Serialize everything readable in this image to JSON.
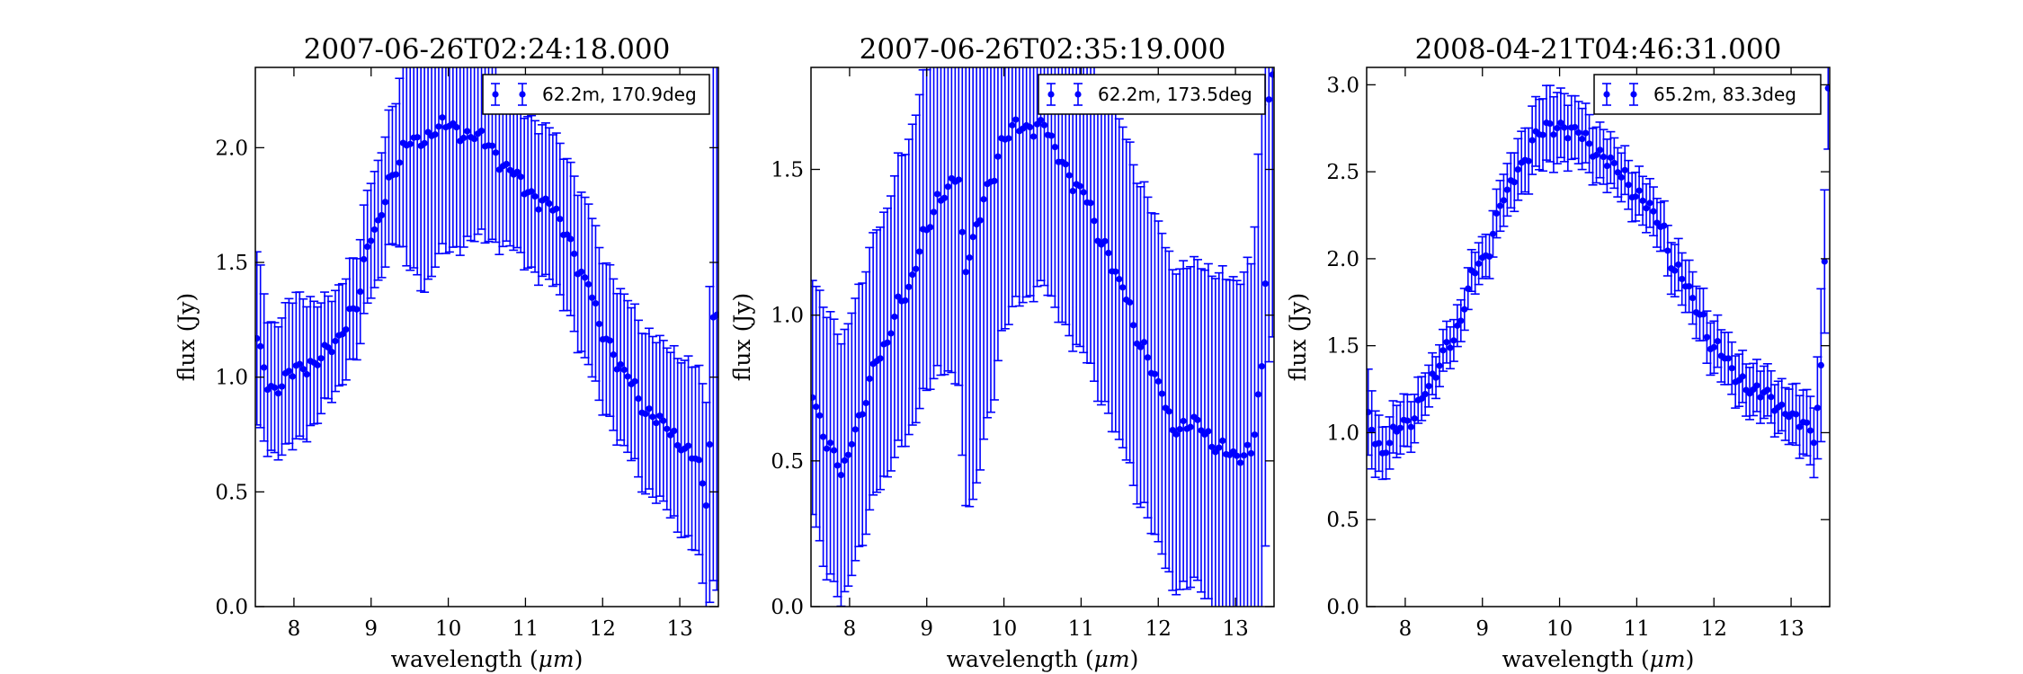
{
  "chart_data": [
    {
      "type": "scatter",
      "title": "2007-06-26T02:24:18.000",
      "xlabel": "wavelength (",
      "xlabel_unit": "μm",
      "xlabel_close": ")",
      "ylabel": "flux (Jy)",
      "xlim": [
        7.5,
        13.5
      ],
      "ylim": [
        0.0,
        2.35
      ],
      "xticks": [
        "8",
        "9",
        "10",
        "11",
        "12",
        "13"
      ],
      "yticks": [
        "0.0",
        "0.5",
        "1.0",
        "1.5",
        "2.0"
      ],
      "legend": "62.2m, 170.9deg",
      "legend_loc": "upper right",
      "color": "#0000ff",
      "error_bars": true,
      "anchors": [
        [
          7.5,
          1.15,
          0.38
        ],
        [
          7.7,
          0.95,
          0.28
        ],
        [
          8.0,
          1.02,
          0.32
        ],
        [
          8.5,
          1.12,
          0.22
        ],
        [
          8.8,
          1.32,
          0.22
        ],
        [
          9.0,
          1.6,
          0.25
        ],
        [
          9.3,
          1.9,
          0.3
        ],
        [
          9.5,
          2.02,
          0.55
        ],
        [
          9.7,
          2.05,
          0.65
        ],
        [
          9.9,
          2.08,
          0.55
        ],
        [
          10.0,
          2.1,
          0.55
        ],
        [
          10.3,
          2.05,
          0.45
        ],
        [
          10.5,
          2.02,
          0.42
        ],
        [
          10.8,
          1.9,
          0.33
        ],
        [
          11.0,
          1.82,
          0.33
        ],
        [
          11.3,
          1.75,
          0.33
        ],
        [
          11.5,
          1.65,
          0.33
        ],
        [
          11.8,
          1.4,
          0.35
        ],
        [
          12.0,
          1.2,
          0.33
        ],
        [
          12.3,
          1.0,
          0.33
        ],
        [
          12.6,
          0.85,
          0.35
        ],
        [
          12.8,
          0.78,
          0.35
        ],
        [
          13.0,
          0.72,
          0.38
        ],
        [
          13.2,
          0.65,
          0.4
        ],
        [
          13.35,
          0.45,
          0.45
        ],
        [
          13.45,
          1.3,
          1.2
        ]
      ]
    },
    {
      "type": "scatter",
      "title": "2007-06-26T02:35:19.000",
      "xlabel": "wavelength (",
      "xlabel_unit": "μm",
      "xlabel_close": ")",
      "ylabel": "flux (Jy)",
      "xlim": [
        7.5,
        13.5
      ],
      "ylim": [
        0.0,
        1.85
      ],
      "xticks": [
        "8",
        "9",
        "10",
        "11",
        "12",
        "13"
      ],
      "yticks": [
        "0.0",
        "0.5",
        "1.0",
        "1.5"
      ],
      "legend": "62.2m, 173.5deg",
      "legend_loc": "upper right",
      "color": "#0000ff",
      "error_bars": true,
      "anchors": [
        [
          7.5,
          0.75,
          0.4
        ],
        [
          7.7,
          0.55,
          0.45
        ],
        [
          7.9,
          0.48,
          0.45
        ],
        [
          8.1,
          0.62,
          0.45
        ],
        [
          8.4,
          0.88,
          0.45
        ],
        [
          8.7,
          1.05,
          0.5
        ],
        [
          9.0,
          1.3,
          0.55
        ],
        [
          9.2,
          1.4,
          0.6
        ],
        [
          9.4,
          1.5,
          0.7
        ],
        [
          9.5,
          1.15,
          0.8
        ],
        [
          9.6,
          1.25,
          0.9
        ],
        [
          9.8,
          1.45,
          0.8
        ],
        [
          10.0,
          1.6,
          0.65
        ],
        [
          10.2,
          1.65,
          0.6
        ],
        [
          10.5,
          1.65,
          0.55
        ],
        [
          10.7,
          1.55,
          0.55
        ],
        [
          11.0,
          1.42,
          0.55
        ],
        [
          11.3,
          1.25,
          0.55
        ],
        [
          11.5,
          1.1,
          0.55
        ],
        [
          11.8,
          0.9,
          0.55
        ],
        [
          12.0,
          0.75,
          0.55
        ],
        [
          12.2,
          0.62,
          0.55
        ],
        [
          12.5,
          0.62,
          0.55
        ],
        [
          12.8,
          0.55,
          0.6
        ],
        [
          13.0,
          0.5,
          0.6
        ],
        [
          13.2,
          0.55,
          0.65
        ],
        [
          13.35,
          0.8,
          0.9
        ],
        [
          13.45,
          1.8,
          0.9
        ]
      ]
    },
    {
      "type": "scatter",
      "title": "2008-04-21T04:46:31.000",
      "xlabel": "wavelength (",
      "xlabel_unit": "μm",
      "xlabel_close": ")",
      "ylabel": "flux (Jy)",
      "xlim": [
        7.5,
        13.5
      ],
      "ylim": [
        0.0,
        3.1
      ],
      "xticks": [
        "8",
        "9",
        "10",
        "11",
        "12",
        "13"
      ],
      "yticks": [
        "0.0",
        "0.5",
        "1.0",
        "1.5",
        "2.0",
        "2.5",
        "3.0"
      ],
      "legend": "65.2m, 83.3deg",
      "legend_loc": "upper right",
      "color": "#0000ff",
      "error_bars": true,
      "anchors": [
        [
          7.5,
          1.1,
          0.25
        ],
        [
          7.7,
          0.9,
          0.15
        ],
        [
          8.0,
          1.05,
          0.15
        ],
        [
          8.3,
          1.25,
          0.12
        ],
        [
          8.6,
          1.55,
          0.12
        ],
        [
          9.0,
          2.0,
          0.12
        ],
        [
          9.3,
          2.35,
          0.15
        ],
        [
          9.5,
          2.55,
          0.18
        ],
        [
          9.7,
          2.7,
          0.2
        ],
        [
          9.9,
          2.75,
          0.22
        ],
        [
          10.0,
          2.78,
          0.2
        ],
        [
          10.2,
          2.72,
          0.18
        ],
        [
          10.5,
          2.62,
          0.16
        ],
        [
          10.8,
          2.48,
          0.14
        ],
        [
          11.0,
          2.38,
          0.14
        ],
        [
          11.3,
          2.2,
          0.14
        ],
        [
          11.5,
          1.95,
          0.15
        ],
        [
          11.8,
          1.7,
          0.15
        ],
        [
          12.0,
          1.5,
          0.15
        ],
        [
          12.3,
          1.32,
          0.15
        ],
        [
          12.6,
          1.22,
          0.15
        ],
        [
          12.9,
          1.15,
          0.15
        ],
        [
          13.1,
          1.05,
          0.18
        ],
        [
          13.3,
          1.0,
          0.2
        ],
        [
          13.4,
          1.4,
          0.45
        ],
        [
          13.48,
          3.0,
          0.35
        ]
      ]
    }
  ]
}
